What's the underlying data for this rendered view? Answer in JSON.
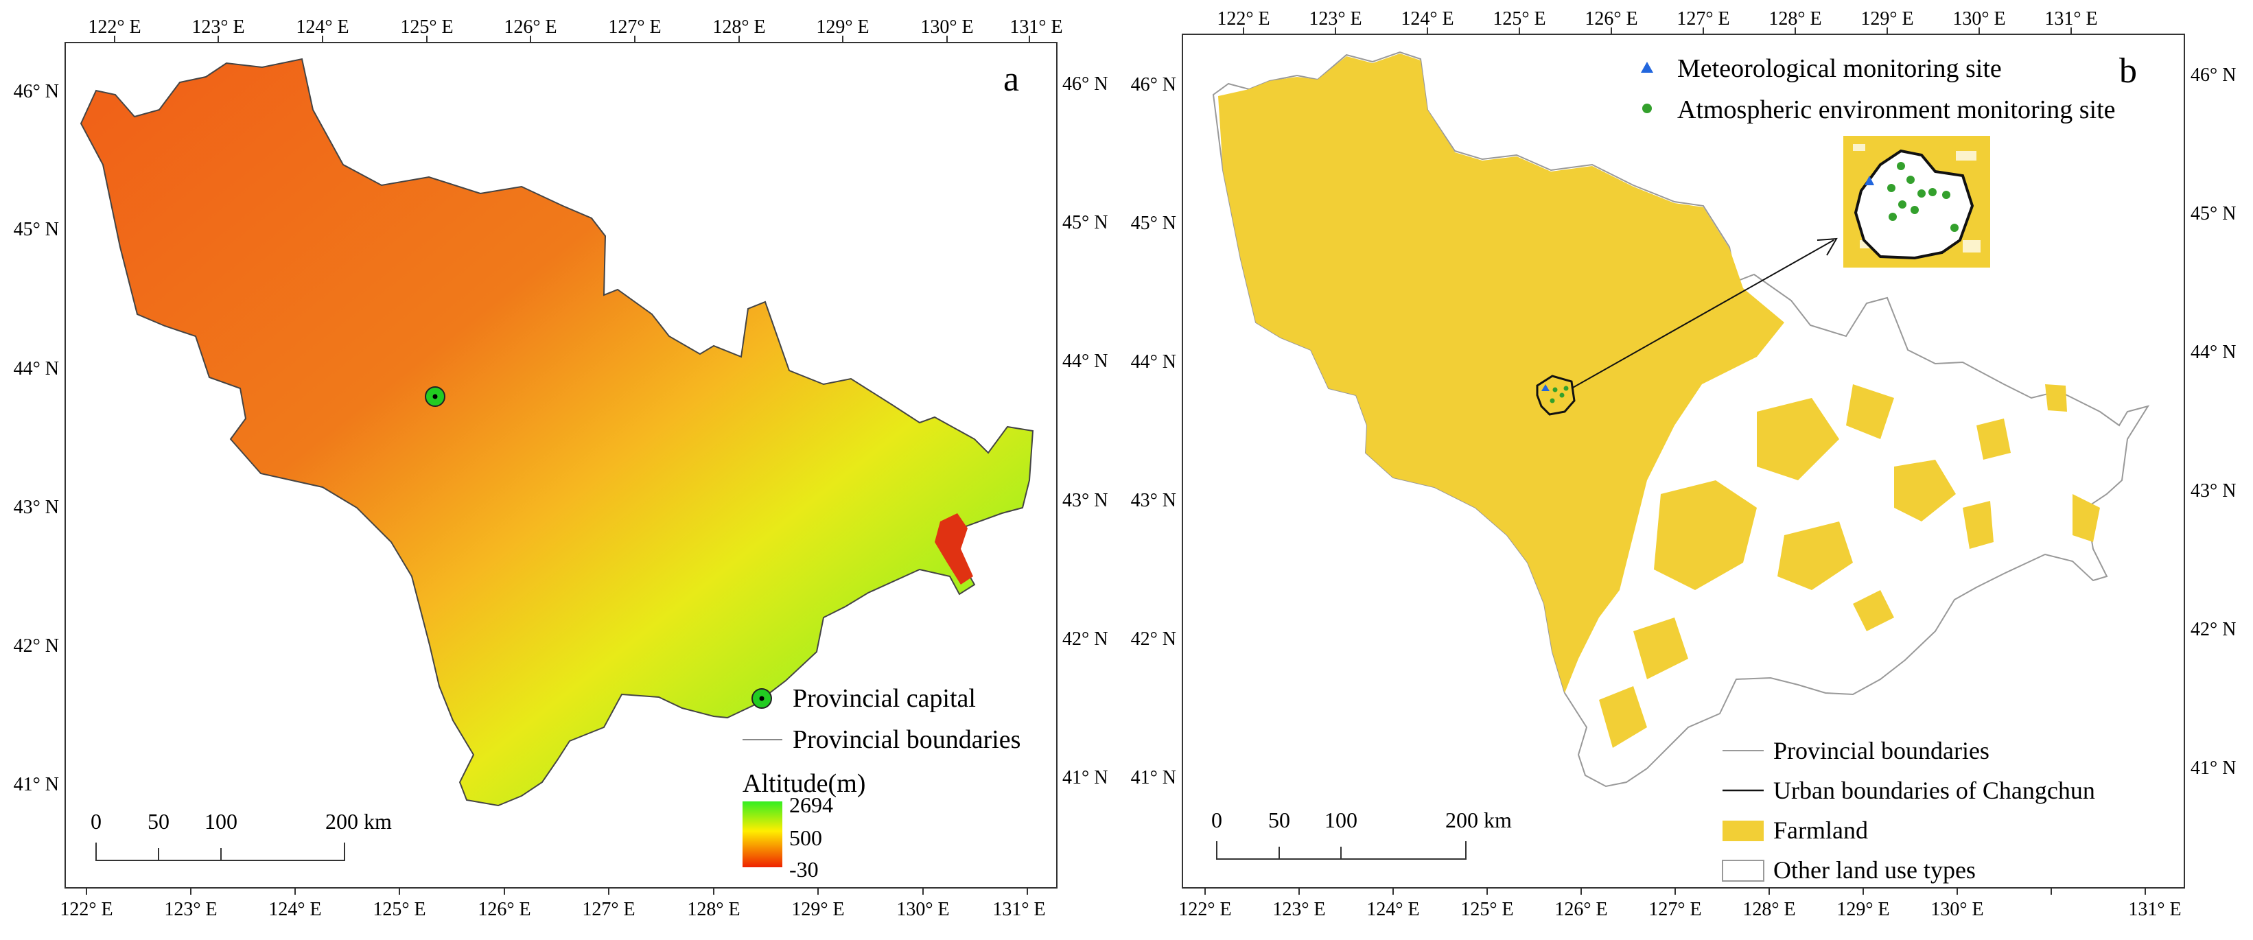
{
  "panel_a": {
    "label": "a",
    "top_ticks": [
      "122° E",
      "123° E",
      "124° E",
      "125° E",
      "126° E",
      "127° E",
      "128° E",
      "129° E",
      "130° E",
      "131° E"
    ],
    "bottom_ticks": [
      "122° E",
      "123° E",
      "124° E",
      "125° E",
      "126° E",
      "127° E",
      "128° E",
      "129° E",
      "130° E",
      "131° E"
    ],
    "left_ticks": [
      "46° N",
      "45° N",
      "44° N",
      "43° N",
      "42° N",
      "41° N"
    ],
    "right_ticks": [
      "46° N",
      "45° N",
      "44° N",
      "43° N",
      "42° N",
      "41° N"
    ],
    "legend": {
      "capital": "Provincial capital",
      "boundaries": "Provincial boundaries",
      "altitude_title": "Altitude(m)",
      "altitude_max": "2694",
      "altitude_mid": "500",
      "altitude_min": "-30",
      "colors": {
        "high": "#33ee22",
        "mid": "#ffee00",
        "low": "#ee2200"
      }
    },
    "scale_bar": {
      "t0": "0",
      "t1": "50",
      "t2": "100",
      "t3": "200 km"
    }
  },
  "panel_b": {
    "label": "b",
    "top_ticks": [
      "122° E",
      "123° E",
      "124° E",
      "125° E",
      "126° E",
      "127° E",
      "128° E",
      "129° E",
      "130° E",
      "131° E"
    ],
    "bottom_ticks": [
      "122° E",
      "123° E",
      "124° E",
      "125° E",
      "126° E",
      "127° E",
      "128° E",
      "129° E",
      "130° E",
      "131° E"
    ],
    "left_ticks": [
      "46° N",
      "45° N",
      "44° N",
      "43° N",
      "42° N",
      "41° N"
    ],
    "right_ticks": [
      "46° N",
      "45° N",
      "44° N",
      "43° N",
      "42° N",
      "41° N"
    ],
    "legend": {
      "meteo_site": "Meteorological monitoring site",
      "atmo_site": "Atmospheric environment monitoring site",
      "prov_boundaries": "Provincial boundaries",
      "urban_boundaries": "Urban boundaries of Changchun",
      "farmland": "Farmland",
      "other_land": "Other land use types",
      "colors": {
        "farmland": "#f2cf36",
        "meteo": "#2266dd",
        "atmo": "#33a02c"
      }
    },
    "scale_bar": {
      "t0": "0",
      "t1": "50",
      "t2": "100",
      "t3": "200 km"
    }
  }
}
